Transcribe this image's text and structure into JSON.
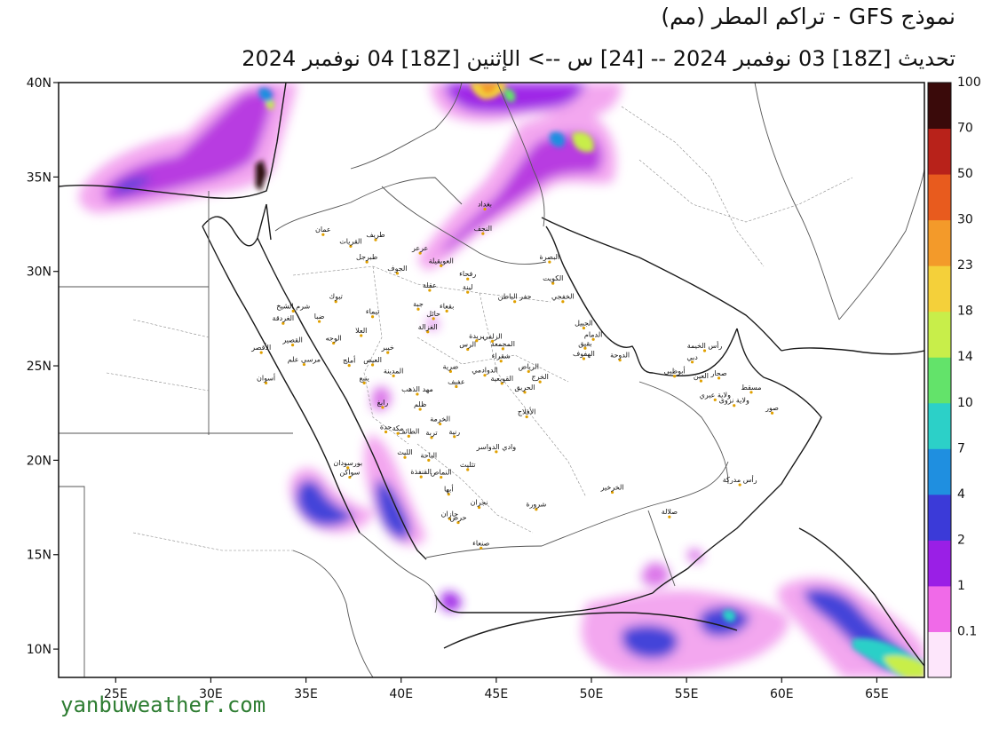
{
  "header": {
    "title": "نموذج GFS  - تراكم المطر (مم)",
    "subtitle": "تحديث [18Z] 03 نوفمبر 2024 -- [24] س --> الإثنين [18Z] 04 نوفمبر 2024"
  },
  "footer": {
    "website": "yanbuweather.com"
  },
  "map": {
    "lat_range": [
      8.5,
      40
    ],
    "lon_range": [
      22,
      67.5
    ],
    "lat_ticks": [
      {
        "v": 10,
        "label": "10N"
      },
      {
        "v": 15,
        "label": "15N"
      },
      {
        "v": 20,
        "label": "20N"
      },
      {
        "v": 25,
        "label": "25N"
      },
      {
        "v": 30,
        "label": "30N"
      },
      {
        "v": 35,
        "label": "35N"
      },
      {
        "v": 40,
        "label": "40N"
      }
    ],
    "lon_ticks": [
      {
        "v": 25,
        "label": "25E"
      },
      {
        "v": 30,
        "label": "30E"
      },
      {
        "v": 35,
        "label": "35E"
      },
      {
        "v": 40,
        "label": "40E"
      },
      {
        "v": 45,
        "label": "45E"
      },
      {
        "v": 50,
        "label": "50E"
      },
      {
        "v": 55,
        "label": "55E"
      },
      {
        "v": 60,
        "label": "60E"
      },
      {
        "v": 65,
        "label": "65E"
      }
    ],
    "legend": [
      {
        "label": "0.1",
        "color": "#fde6fb"
      },
      {
        "label": "1",
        "color": "#f06ae8"
      },
      {
        "label": "2",
        "color": "#9a1fe6"
      },
      {
        "label": "4",
        "color": "#3b3ad8"
      },
      {
        "label": "7",
        "color": "#1f8fe0"
      },
      {
        "label": "10",
        "color": "#2cd0c8"
      },
      {
        "label": "14",
        "color": "#63e36a"
      },
      {
        "label": "18",
        "color": "#c8ee4a"
      },
      {
        "label": "23",
        "color": "#f4d03a"
      },
      {
        "label": "30",
        "color": "#f39a2a"
      },
      {
        "label": "50",
        "color": "#e85b1e"
      },
      {
        "label": "70",
        "color": "#b8221a"
      },
      {
        "label": "100",
        "color": "#3a0a0a"
      }
    ],
    "cities": [
      {
        "name": "عمان",
        "lon": 35.9,
        "lat": 31.95
      },
      {
        "name": "بغداد",
        "lon": 44.4,
        "lat": 33.3
      },
      {
        "name": "النجف",
        "lon": 44.3,
        "lat": 32.0
      },
      {
        "name": "البصرة",
        "lon": 47.8,
        "lat": 30.5
      },
      {
        "name": "الكويت",
        "lon": 47.98,
        "lat": 29.37
      },
      {
        "name": "الخفجي",
        "lon": 48.5,
        "lat": 28.4
      },
      {
        "name": "الجبيل",
        "lon": 49.6,
        "lat": 27.0
      },
      {
        "name": "الدمام",
        "lon": 50.1,
        "lat": 26.4
      },
      {
        "name": "بقيق",
        "lon": 49.67,
        "lat": 25.93
      },
      {
        "name": "الهفوف",
        "lon": 49.6,
        "lat": 25.38
      },
      {
        "name": "الدوحة",
        "lon": 51.5,
        "lat": 25.3
      },
      {
        "name": "أبوظبي",
        "lon": 54.37,
        "lat": 24.45
      },
      {
        "name": "دبي",
        "lon": 55.3,
        "lat": 25.2
      },
      {
        "name": "رأس الخيمة",
        "lon": 55.95,
        "lat": 25.8
      },
      {
        "name": "العين",
        "lon": 55.76,
        "lat": 24.2
      },
      {
        "name": "صحار",
        "lon": 56.7,
        "lat": 24.35
      },
      {
        "name": "مسقط",
        "lon": 58.4,
        "lat": 23.6
      },
      {
        "name": "ولاية عبري",
        "lon": 56.5,
        "lat": 23.2
      },
      {
        "name": "ولاية نزوى",
        "lon": 57.5,
        "lat": 22.9
      },
      {
        "name": "صور",
        "lon": 59.5,
        "lat": 22.5
      },
      {
        "name": "رأس مدركة",
        "lon": 57.8,
        "lat": 18.7
      },
      {
        "name": "صلالة",
        "lon": 54.1,
        "lat": 17.0
      },
      {
        "name": "الخرخير",
        "lon": 51.1,
        "lat": 18.3
      },
      {
        "name": "شرورة",
        "lon": 47.1,
        "lat": 17.4
      },
      {
        "name": "نجران",
        "lon": 44.1,
        "lat": 17.5
      },
      {
        "name": "جازان",
        "lon": 42.55,
        "lat": 16.9
      },
      {
        "name": "أبها",
        "lon": 42.5,
        "lat": 18.2
      },
      {
        "name": "صنعاء",
        "lon": 44.2,
        "lat": 15.35
      },
      {
        "name": "الرياض",
        "lon": 46.7,
        "lat": 24.7
      },
      {
        "name": "الخرج",
        "lon": 47.3,
        "lat": 24.15
      },
      {
        "name": "الحريق",
        "lon": 46.5,
        "lat": 23.6
      },
      {
        "name": "القويعية",
        "lon": 45.3,
        "lat": 24.07
      },
      {
        "name": "الدوادمي",
        "lon": 44.4,
        "lat": 24.5
      },
      {
        "name": "شقراء",
        "lon": 45.25,
        "lat": 25.25
      },
      {
        "name": "المجمعة",
        "lon": 45.35,
        "lat": 25.9
      },
      {
        "name": "الزلفي",
        "lon": 44.8,
        "lat": 26.3
      },
      {
        "name": "بريدة",
        "lon": 43.97,
        "lat": 26.33
      },
      {
        "name": "الرس",
        "lon": 43.5,
        "lat": 25.87
      },
      {
        "name": "ضرية",
        "lon": 42.6,
        "lat": 24.7
      },
      {
        "name": "عفيف",
        "lon": 42.9,
        "lat": 23.9
      },
      {
        "name": "حائل",
        "lon": 41.7,
        "lat": 27.5
      },
      {
        "name": "بقعاء",
        "lon": 42.4,
        "lat": 27.9
      },
      {
        "name": "جبة",
        "lon": 40.9,
        "lat": 28.0
      },
      {
        "name": "الغزالة",
        "lon": 41.4,
        "lat": 26.8
      },
      {
        "name": "عرعر",
        "lon": 41.0,
        "lat": 30.97
      },
      {
        "name": "رفحاء",
        "lon": 43.5,
        "lat": 29.6
      },
      {
        "name": "لينة",
        "lon": 43.5,
        "lat": 28.9
      },
      {
        "name": "حفر الباطن",
        "lon": 45.97,
        "lat": 28.4
      },
      {
        "name": "العويقيلة",
        "lon": 42.1,
        "lat": 30.3
      },
      {
        "name": "طريف",
        "lon": 38.66,
        "lat": 31.67
      },
      {
        "name": "القريات",
        "lon": 37.35,
        "lat": 31.33
      },
      {
        "name": "طبرجل",
        "lon": 38.2,
        "lat": 30.5
      },
      {
        "name": "الجوف",
        "lon": 39.8,
        "lat": 29.9
      },
      {
        "name": "عقلة",
        "lon": 41.5,
        "lat": 29.0
      },
      {
        "name": "تبوك",
        "lon": 36.57,
        "lat": 28.4
      },
      {
        "name": "تيماء",
        "lon": 38.5,
        "lat": 27.6
      },
      {
        "name": "العلا",
        "lon": 37.9,
        "lat": 26.6
      },
      {
        "name": "خيبر",
        "lon": 39.3,
        "lat": 25.7
      },
      {
        "name": "المدينة",
        "lon": 39.6,
        "lat": 24.47
      },
      {
        "name": "ينبع",
        "lon": 38.06,
        "lat": 24.09
      },
      {
        "name": "العيص",
        "lon": 38.5,
        "lat": 25.05
      },
      {
        "name": "أملج",
        "lon": 37.27,
        "lat": 25.02
      },
      {
        "name": "الوجه",
        "lon": 36.45,
        "lat": 26.2
      },
      {
        "name": "ضبا",
        "lon": 35.7,
        "lat": 27.35
      },
      {
        "name": "شرم الشيخ",
        "lon": 34.33,
        "lat": 27.9
      },
      {
        "name": "الغردقة",
        "lon": 33.8,
        "lat": 27.25
      },
      {
        "name": "القصير",
        "lon": 34.3,
        "lat": 26.1
      },
      {
        "name": "مرسى علم",
        "lon": 34.9,
        "lat": 25.07
      },
      {
        "name": "الأقصر",
        "lon": 32.65,
        "lat": 25.7
      },
      {
        "name": "أسوان",
        "lon": 32.9,
        "lat": 24.09
      },
      {
        "name": "رابغ",
        "lon": 39.03,
        "lat": 22.8
      },
      {
        "name": "مهد الذهب",
        "lon": 40.85,
        "lat": 23.5
      },
      {
        "name": "ظلم",
        "lon": 41.0,
        "lat": 22.7
      },
      {
        "name": "الخرمة",
        "lon": 42.05,
        "lat": 21.92
      },
      {
        "name": "تربة",
        "lon": 41.6,
        "lat": 21.2
      },
      {
        "name": "رنية",
        "lon": 42.8,
        "lat": 21.25
      },
      {
        "name": "الطائف",
        "lon": 40.4,
        "lat": 21.27
      },
      {
        "name": "مكة",
        "lon": 39.83,
        "lat": 21.42
      },
      {
        "name": "جدة",
        "lon": 39.2,
        "lat": 21.5
      },
      {
        "name": "الليث",
        "lon": 40.2,
        "lat": 20.15
      },
      {
        "name": "الباحة",
        "lon": 41.45,
        "lat": 20.0
      },
      {
        "name": "القنفذة",
        "lon": 41.05,
        "lat": 19.12
      },
      {
        "name": "النماص",
        "lon": 42.1,
        "lat": 19.1
      },
      {
        "name": "تثليث",
        "lon": 43.5,
        "lat": 19.5
      },
      {
        "name": "وادي الدواسر",
        "lon": 45.0,
        "lat": 20.45
      },
      {
        "name": "الأفلاج",
        "lon": 46.6,
        "lat": 22.3
      },
      {
        "name": "بورسودان",
        "lon": 37.2,
        "lat": 19.6
      },
      {
        "name": "سواكن",
        "lon": 37.3,
        "lat": 19.1
      },
      {
        "name": "حرض",
        "lon": 43.0,
        "lat": 16.7
      }
    ]
  }
}
